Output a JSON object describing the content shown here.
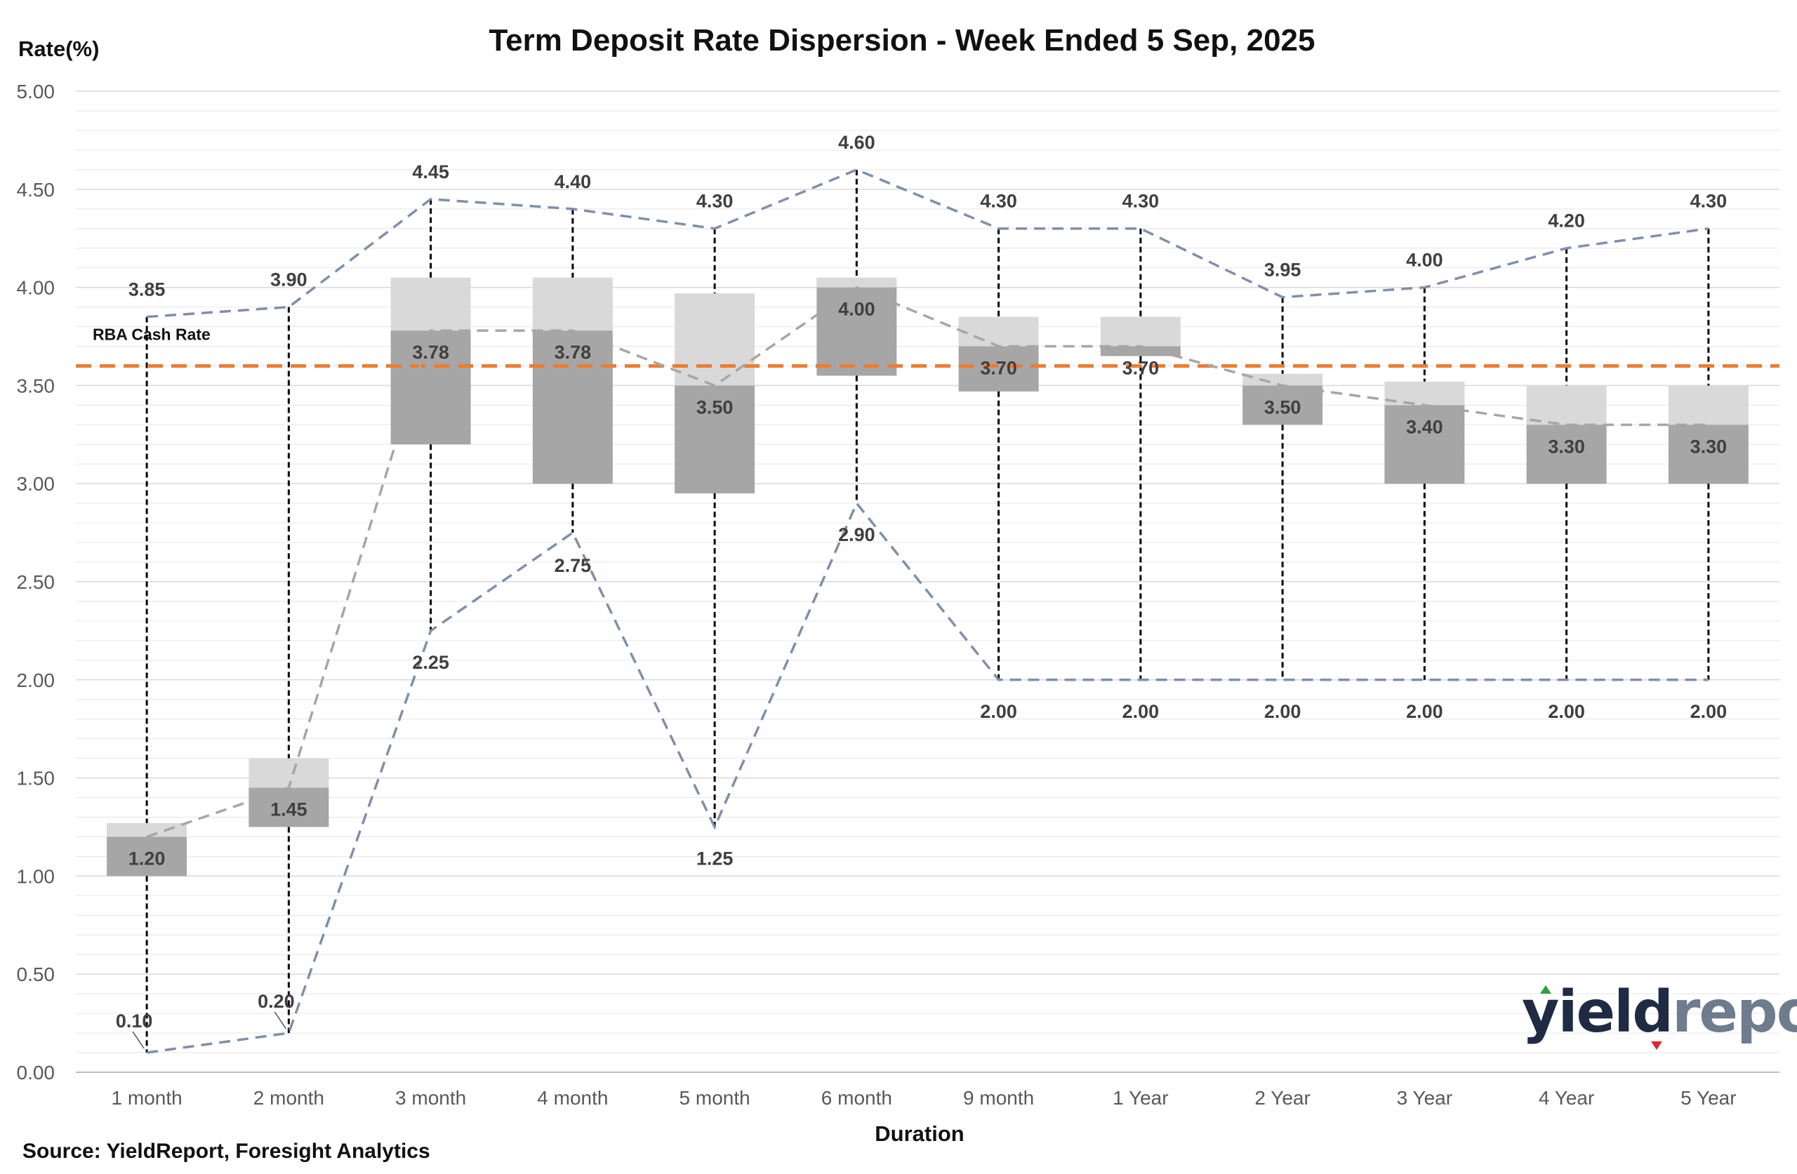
{
  "chart_data": {
    "type": "box",
    "title": "Term Deposit Rate Dispersion - Week Ended 5 Sep, 2025",
    "xlabel": "Duration",
    "ylabel": "Rate(%)",
    "source": "Source: YieldReport, Foresight Analytics",
    "ylim": [
      0,
      5
    ],
    "ytick_step": 0.5,
    "grid": true,
    "categories": [
      "1 month",
      "2 month",
      "3 month",
      "4 month",
      "5 month",
      "6 month",
      "9 month",
      "1  Year",
      "2  Year",
      "3  Year",
      "4  Year",
      "5  Year"
    ],
    "max": [
      3.85,
      3.9,
      4.45,
      4.4,
      4.3,
      4.6,
      4.3,
      4.3,
      3.95,
      4.0,
      4.2,
      4.3
    ],
    "min": [
      0.1,
      0.2,
      2.25,
      2.75,
      1.25,
      2.9,
      2.0,
      2.0,
      2.0,
      2.0,
      2.0,
      2.0
    ],
    "median": [
      1.2,
      1.45,
      3.78,
      3.78,
      3.5,
      4.0,
      3.7,
      3.7,
      3.5,
      3.4,
      3.3,
      3.3
    ],
    "q1": [
      1.0,
      1.25,
      3.2,
      3.0,
      2.95,
      3.55,
      3.47,
      3.65,
      3.3,
      3.0,
      3.0,
      3.0
    ],
    "q3": [
      1.27,
      1.6,
      4.05,
      4.05,
      3.97,
      4.05,
      3.85,
      3.85,
      3.56,
      3.52,
      3.5,
      3.5
    ],
    "max_labels": [
      "3.85",
      "3.90",
      "4.45",
      "4.40",
      "4.30",
      "4.60",
      "4.30",
      "4.30",
      "3.95",
      "4.00",
      "4.20",
      "4.30"
    ],
    "min_labels": [
      "0.10",
      "0.20",
      "2.25",
      "2.75",
      "1.25",
      "2.90",
      "2.00",
      "2.00",
      "2.00",
      "2.00",
      "2.00",
      "2.00"
    ],
    "median_labels": [
      "1.20",
      "1.45",
      "3.78",
      "3.78",
      "3.50",
      "4.00",
      "3.70",
      "3.70",
      "3.50",
      "3.40",
      "3.30",
      "3.30"
    ],
    "reference_line": {
      "label": "RBA Cash Rate",
      "value": 3.6,
      "color": "#ed7d31"
    },
    "colors": {
      "upper_box": "#d9d9d9",
      "lower_box": "#a6a6a6",
      "range_line": "#7f90a8",
      "median_line": "#a6a6a6",
      "whisker": "#000000",
      "grid": "#e6e6e6"
    }
  },
  "logo": {
    "part1": "yield",
    "part2": "report"
  }
}
